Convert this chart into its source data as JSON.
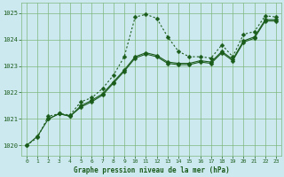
{
  "title": "Graphe pression niveau de la mer (hPa)",
  "background_color": "#cde9f0",
  "plot_bg_color": "#cde9f0",
  "line_color": "#1a5c1a",
  "grid_color": "#7db87d",
  "xlim": [
    -0.5,
    23.5
  ],
  "ylim": [
    1019.6,
    1025.4
  ],
  "yticks": [
    1020,
    1021,
    1022,
    1023,
    1024,
    1025
  ],
  "xticks": [
    0,
    1,
    2,
    3,
    4,
    5,
    6,
    7,
    8,
    9,
    10,
    11,
    12,
    13,
    14,
    15,
    16,
    17,
    18,
    19,
    20,
    21,
    22,
    23
  ],
  "series": [
    {
      "x": [
        0,
        1,
        2,
        3,
        4,
        5,
        6,
        7,
        8,
        9,
        10,
        11,
        12,
        13,
        14,
        15,
        16,
        17,
        18,
        19,
        20,
        21,
        22,
        23
      ],
      "y": [
        1020.0,
        1020.3,
        1021.1,
        1021.2,
        1021.15,
        1021.65,
        1021.8,
        1022.15,
        1022.65,
        1023.35,
        1024.85,
        1024.95,
        1024.8,
        1024.1,
        1023.55,
        1023.35,
        1023.35,
        1023.3,
        1023.8,
        1023.35,
        1024.2,
        1024.3,
        1024.9,
        1024.85
      ],
      "style": "dotted",
      "marker": "D",
      "markersize": 2.5
    },
    {
      "x": [
        0,
        1,
        2,
        3,
        4,
        5,
        6,
        7,
        8,
        9,
        10,
        11,
        12,
        13,
        14,
        15,
        16,
        17,
        18,
        19,
        20,
        21,
        22,
        23
      ],
      "y": [
        1020.0,
        1020.35,
        1021.0,
        1021.2,
        1021.1,
        1021.5,
        1021.7,
        1021.95,
        1022.4,
        1022.85,
        1023.35,
        1023.5,
        1023.4,
        1023.15,
        1023.1,
        1023.1,
        1023.2,
        1023.15,
        1023.55,
        1023.25,
        1023.95,
        1024.1,
        1024.75,
        1024.75
      ],
      "style": "solid",
      "marker": "D",
      "markersize": 2.5
    },
    {
      "x": [
        2,
        3,
        4,
        5,
        6,
        7,
        8,
        9,
        10,
        11,
        12,
        13,
        14,
        15,
        16,
        17,
        18,
        19,
        20,
        21,
        22,
        23
      ],
      "y": [
        1021.0,
        1021.2,
        1021.1,
        1021.45,
        1021.65,
        1021.9,
        1022.35,
        1022.8,
        1023.3,
        1023.45,
        1023.35,
        1023.1,
        1023.05,
        1023.05,
        1023.15,
        1023.1,
        1023.5,
        1023.2,
        1023.9,
        1024.05,
        1024.7,
        1024.7
      ],
      "style": "solid",
      "marker": "D",
      "markersize": 2.5
    }
  ]
}
